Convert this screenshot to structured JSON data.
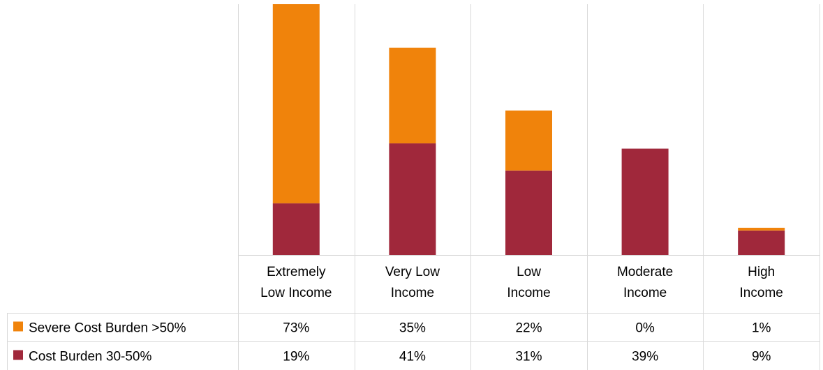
{
  "chart_data": {
    "type": "bar",
    "stacked": true,
    "title": "",
    "xlabel": "",
    "ylabel": "",
    "ylim": [
      0,
      92
    ],
    "grid": true,
    "legend_placement": "data-table-left",
    "categories": [
      [
        "Extremely",
        "Low Income"
      ],
      [
        "Very Low",
        "Income"
      ],
      [
        "Low",
        "Income"
      ],
      [
        "Moderate",
        "Income"
      ],
      [
        "High",
        "Income"
      ]
    ],
    "series": [
      {
        "name": "Severe Cost Burden >50%",
        "color": "#F0830B",
        "values": [
          73,
          35,
          22,
          0,
          1
        ],
        "labels": [
          "73%",
          "35%",
          "22%",
          "0%",
          "1%"
        ]
      },
      {
        "name": "Cost Burden 30-50%",
        "color": "#A0283B",
        "values": [
          19,
          41,
          31,
          39,
          9
        ],
        "labels": [
          "19%",
          "41%",
          "31%",
          "39%",
          "9%"
        ]
      }
    ],
    "stack_order": [
      "Cost Burden 30-50%",
      "Severe Cost Burden >50%"
    ]
  }
}
